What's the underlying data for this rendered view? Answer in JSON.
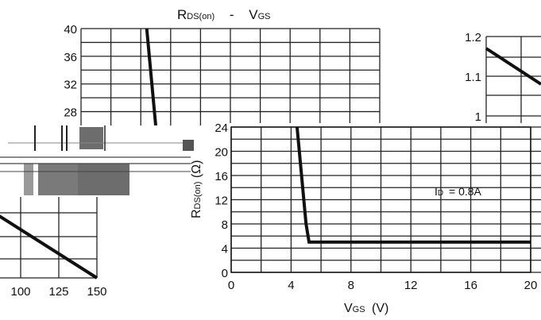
{
  "chart_data": [
    {
      "id": "top",
      "type": "line",
      "title_main": "R",
      "title_sub": "DS(on)",
      "title_sep": "-",
      "title_main2": "V",
      "title_sub2": "GS",
      "ylim": [
        26,
        40
      ],
      "yticks": [
        40,
        36,
        32,
        28
      ],
      "series": [
        {
          "x": [
            4.4,
            5.0
          ],
          "y": [
            40,
            26
          ]
        }
      ]
    },
    {
      "id": "main",
      "type": "line",
      "xlabel_main": "V",
      "xlabel_sub": "GS",
      "xlabel_unit": "(V)",
      "ylabel_main": "R",
      "ylabel_sub": "DS(on)",
      "ylabel_unit": "(Ω)",
      "annotation_main": "I",
      "annotation_sub": "D",
      "annotation_value": "= 0.8A",
      "xlim": [
        0,
        20
      ],
      "ylim": [
        0,
        24
      ],
      "xticks": [
        0,
        4,
        8,
        12,
        16,
        20
      ],
      "yticks": [
        0,
        4,
        8,
        12,
        16,
        20,
        24
      ],
      "series": [
        {
          "x": [
            4.4,
            4.7,
            5.0,
            5.2,
            20
          ],
          "y": [
            24,
            16,
            8,
            5,
            5
          ]
        }
      ]
    },
    {
      "id": "left",
      "type": "line",
      "xlim": [
        75,
        150
      ],
      "xticks": [
        100,
        125,
        150
      ],
      "series": [
        {
          "x": [
            75,
            150
          ],
          "y": [
            0.83,
            0.0
          ]
        }
      ]
    },
    {
      "id": "right",
      "type": "line",
      "ylim": [
        1.0,
        1.2
      ],
      "yticks": [
        1.2,
        1.1,
        1
      ],
      "series": [
        {
          "x": [
            0,
            1
          ],
          "y": [
            1.17,
            1.08
          ]
        }
      ]
    }
  ]
}
